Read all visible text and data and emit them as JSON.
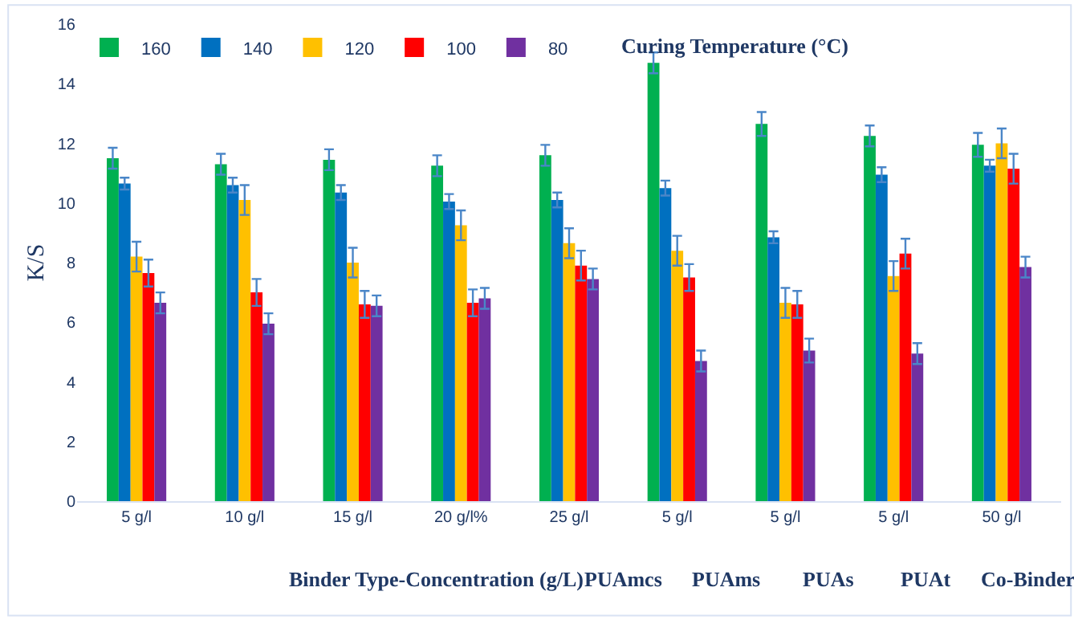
{
  "chart_data": {
    "type": "bar",
    "xlabel": "Binder Type-Concentration (g/L)",
    "ylabel": "K/S",
    "legend_title": "Curing Temperature (°C)",
    "annotations": [
      "PUAmcs",
      "PUAms",
      "PUAs",
      "PUAt",
      "Co-Binder"
    ],
    "categories": [
      "5 g/l",
      "10 g/l",
      "15 g/l",
      "20 g/l%",
      "25 g/l",
      "5 g/l",
      "5 g/l",
      "5 g/l",
      "50 g/l"
    ],
    "series": [
      {
        "name": "160",
        "color": "#00b050",
        "values": [
          11.5,
          11.3,
          11.45,
          11.25,
          11.6,
          14.7,
          12.65,
          12.25,
          11.95
        ],
        "errors": [
          0.35,
          0.35,
          0.35,
          0.35,
          0.35,
          0.35,
          0.4,
          0.35,
          0.4
        ]
      },
      {
        "name": "140",
        "color": "#0070c0",
        "values": [
          10.65,
          10.6,
          10.35,
          10.05,
          10.1,
          10.5,
          8.85,
          10.95,
          11.25
        ],
        "errors": [
          0.2,
          0.25,
          0.25,
          0.25,
          0.25,
          0.25,
          0.2,
          0.25,
          0.2
        ]
      },
      {
        "name": "120",
        "color": "#ffc000",
        "values": [
          8.2,
          10.1,
          8.0,
          9.25,
          8.65,
          8.4,
          6.65,
          7.55,
          12.0
        ],
        "errors": [
          0.5,
          0.5,
          0.5,
          0.5,
          0.5,
          0.5,
          0.5,
          0.5,
          0.5
        ]
      },
      {
        "name": "100",
        "color": "#ff0000",
        "values": [
          7.65,
          7.0,
          6.6,
          6.65,
          7.9,
          7.5,
          6.6,
          8.3,
          11.15
        ],
        "errors": [
          0.45,
          0.45,
          0.45,
          0.45,
          0.5,
          0.45,
          0.45,
          0.5,
          0.5
        ]
      },
      {
        "name": "80",
        "color": "#7030a0",
        "values": [
          6.65,
          5.95,
          6.55,
          6.8,
          7.45,
          4.7,
          5.05,
          4.95,
          7.85
        ],
        "errors": [
          0.35,
          0.35,
          0.35,
          0.35,
          0.35,
          0.35,
          0.4,
          0.35,
          0.35
        ]
      }
    ],
    "ylim": [
      0,
      16
    ],
    "yticks": [
      0,
      2,
      4,
      6,
      8,
      10,
      12,
      14,
      16
    ],
    "legend": "top left"
  }
}
